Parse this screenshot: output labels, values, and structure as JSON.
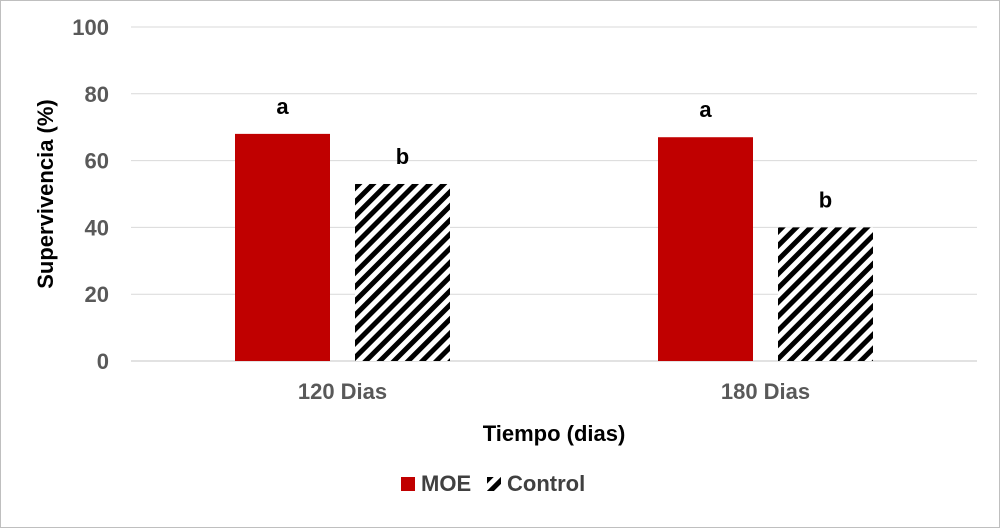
{
  "chart_data": {
    "type": "bar",
    "title": "",
    "xlabel": "Tiempo (dias)",
    "ylabel": "Supervivencia (%)",
    "categories": [
      "120 Dias",
      "180 Dias"
    ],
    "ylim": [
      0,
      100
    ],
    "yticks": [
      0,
      20,
      40,
      60,
      80,
      100
    ],
    "grid": true,
    "legend_position": "bottom",
    "series": [
      {
        "name": "MOE",
        "values": [
          68,
          67
        ],
        "color": "#c00000",
        "pattern": "solid",
        "labels": [
          "a",
          "a"
        ]
      },
      {
        "name": "Control",
        "values": [
          53,
          40
        ],
        "color": "#000000",
        "pattern": "diagonal-hatch",
        "labels": [
          "b",
          "b"
        ]
      }
    ]
  }
}
